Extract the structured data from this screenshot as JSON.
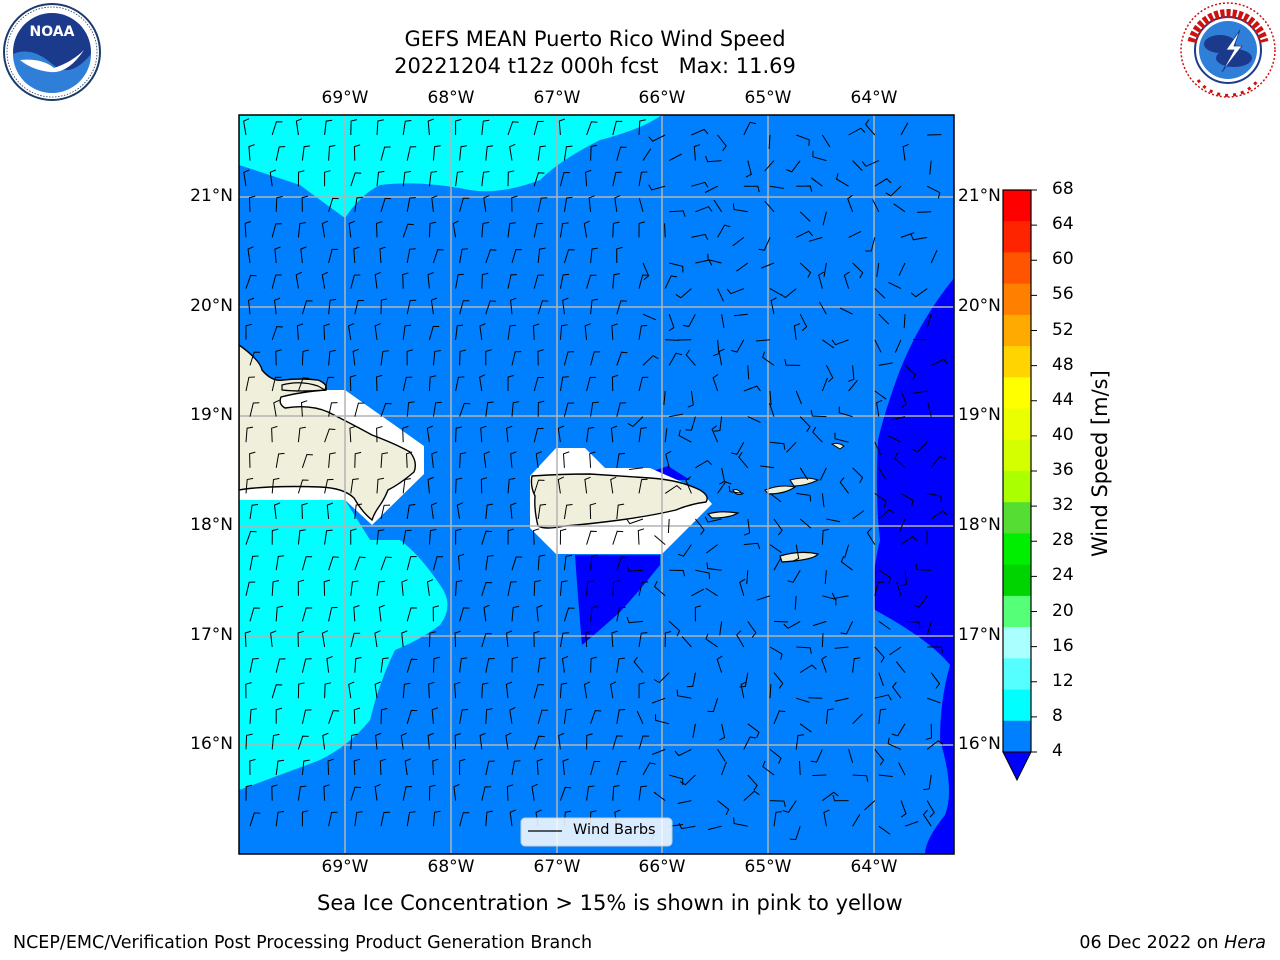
{
  "title_line1": "GEFS MEAN Puerto Rico Wind Speed",
  "title_line2": "20221204 t12z 000h fcst   Max: 11.69",
  "lon_ticks": [
    "69°W",
    "68°W",
    "67°W",
    "66°W",
    "65°W",
    "64°W"
  ],
  "lat_ticks": [
    "21°N",
    "20°N",
    "19°N",
    "18°N",
    "17°N",
    "16°N"
  ],
  "legend_label": "Wind Barbs",
  "colorbar": {
    "title": "Wind Speed [m/s]",
    "ticks": [
      "68",
      "64",
      "60",
      "56",
      "52",
      "48",
      "44",
      "40",
      "36",
      "32",
      "28",
      "24",
      "20",
      "16",
      "12",
      "8",
      "4"
    ],
    "colors_top_to_bottom": [
      "#ff0000",
      "#ff2400",
      "#ff5500",
      "#ff8000",
      "#ffaa00",
      "#ffd400",
      "#ffff00",
      "#eaff00",
      "#d4ff00",
      "#aaff00",
      "#55dd33",
      "#00ee00",
      "#00d400",
      "#55ff77",
      "#aaffff",
      "#55ffff",
      "#00ffff",
      "#0080ff"
    ],
    "under_color": "#0000ff"
  },
  "fill_colors": {
    "level_4_8": "#0080ff",
    "level_8_12": "#00ffff",
    "below_4": "#0000ff",
    "land": "#efefdc"
  },
  "note": "Sea Ice Concentration > 15% is shown in pink to yellow",
  "footer_left": "NCEP/EMC/Verification Post Processing Product Generation Branch",
  "footer_right_date": "06 Dec 2022 on ",
  "footer_right_machine": "Hera",
  "logos": {
    "left": "noaa-logo",
    "right": "nws-logo"
  }
}
